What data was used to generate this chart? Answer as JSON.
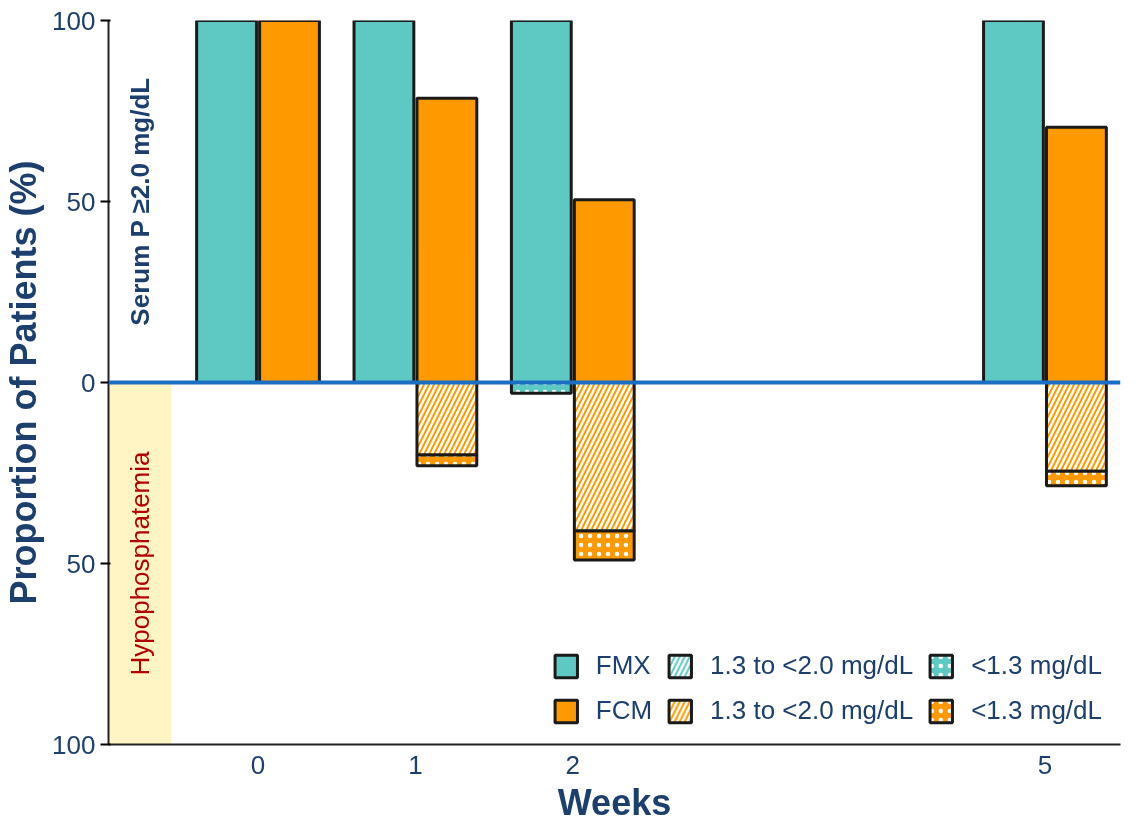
{
  "chart_data": {
    "type": "bar",
    "stacked": true,
    "xlabel": "Weeks",
    "ylabel": "Proportion of Patients (%)",
    "xlim": [
      -0.95,
      5.48
    ],
    "ylim": [
      -100,
      100
    ],
    "xticks": [
      0,
      1,
      2,
      5
    ],
    "yticks": [
      {
        "value": -100,
        "label": "100"
      },
      {
        "value": -50,
        "label": "50"
      },
      0,
      50,
      100
    ],
    "grid": false,
    "legend": "bottom right",
    "x": [
      -0.2,
      0.2,
      0.8,
      1.2,
      1.8,
      2.2,
      4.8,
      5.2
    ],
    "series": [
      {
        "name": "FMX",
        "color": "#5ec8c3",
        "values": [
          100,
          null,
          100,
          null,
          100,
          null,
          100,
          null
        ]
      },
      {
        "name": "FCM",
        "color": "#ff9900",
        "values": [
          null,
          100,
          null,
          78.5,
          null,
          50.5,
          null,
          70.5
        ]
      },
      {
        "name": "1.3 to <2.0 mg/dL",
        "color": "#5ec8c3",
        "values": [
          null,
          null,
          null,
          null,
          null,
          null,
          null,
          null
        ]
      },
      {
        "name": "1.3 to <2.0 mg/dL",
        "color": "#ff9900",
        "values": [
          null,
          null,
          null,
          -20,
          null,
          -41,
          null,
          -24.5
        ]
      },
      {
        "name": "<1.3 mg/dL",
        "color": "#5ec8c3",
        "values": [
          null,
          null,
          null,
          null,
          -3,
          null,
          null,
          null
        ]
      },
      {
        "name": "<1.3 mg/dL",
        "color": "#ff9900",
        "values": [
          null,
          null,
          null,
          -3,
          null,
          -8,
          null,
          -4
        ]
      }
    ],
    "ref_lines": [
      {
        "axis": "y",
        "value": 0,
        "color": "#1a6fc4"
      }
    ],
    "bands": [
      {
        "axis": "x",
        "from": -0.95,
        "to": -0.55,
        "label": "Hypophosphatemia",
        "color": "#fff4c4"
      }
    ],
    "annotations": [
      "Serum P ≥2.0 mg/dL"
    ]
  }
}
